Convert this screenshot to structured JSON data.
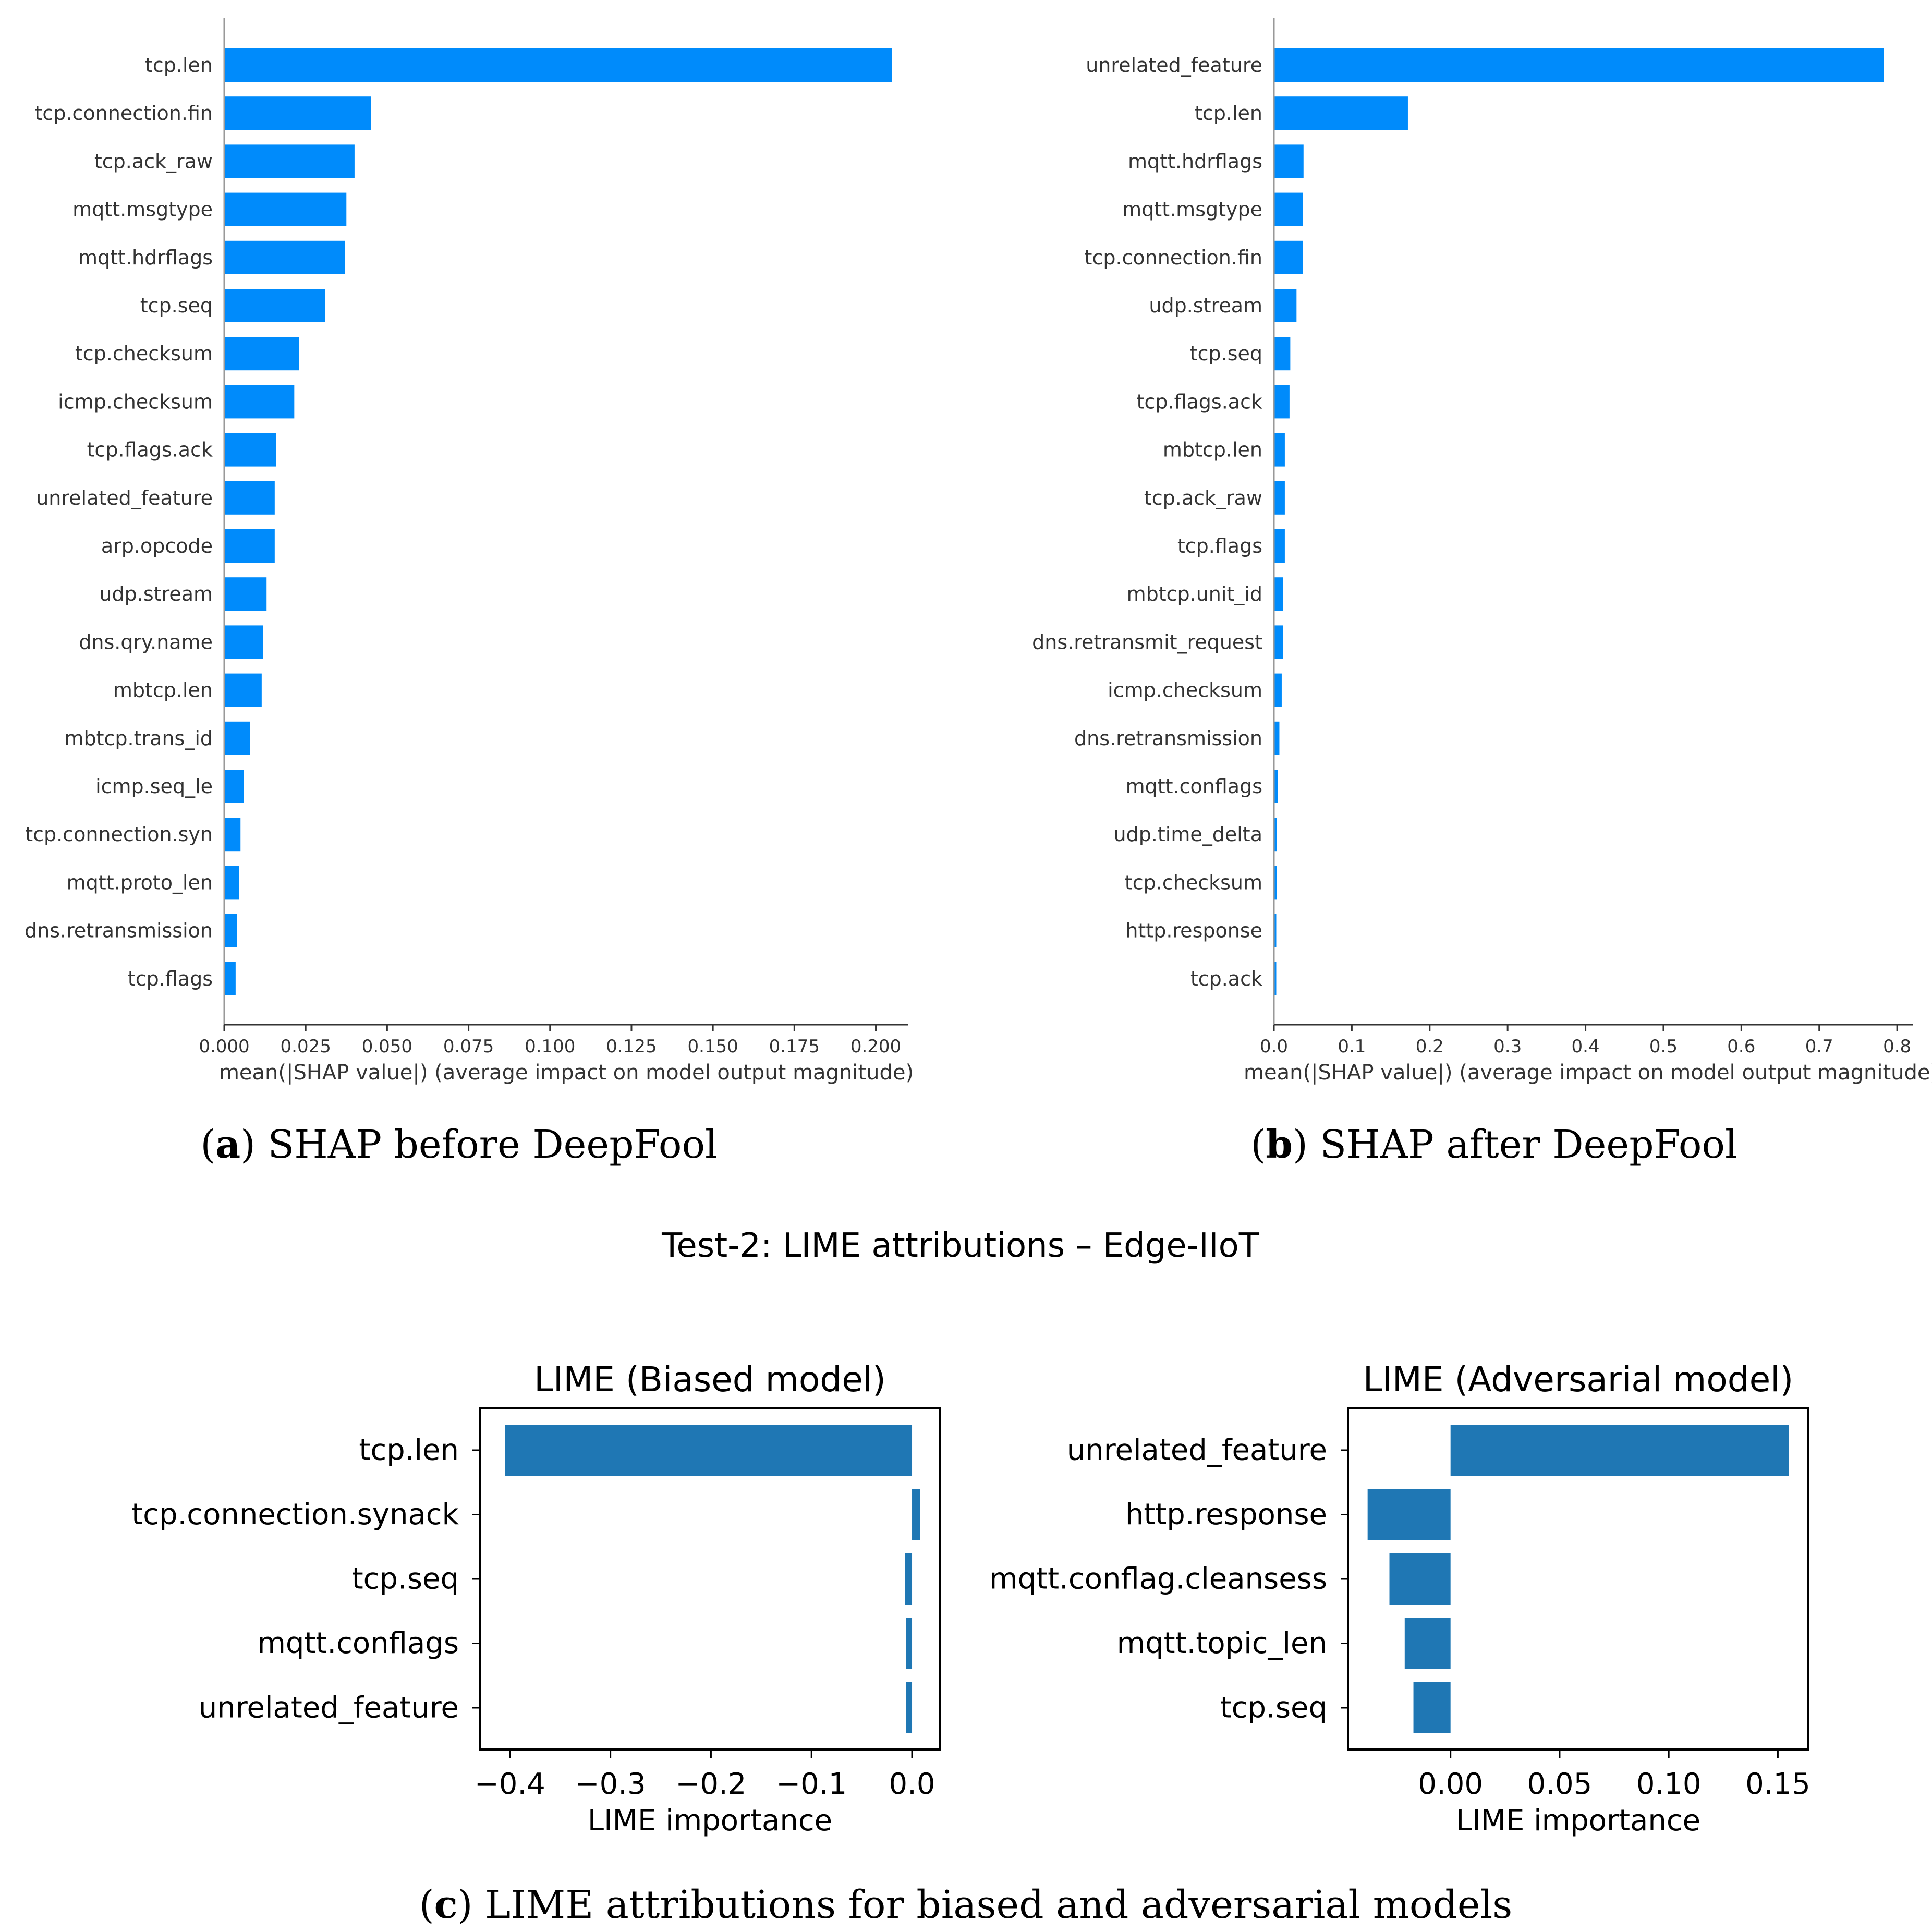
{
  "figure": {
    "caption_a_letter": "a",
    "caption_a_text": " SHAP before DeepFool",
    "caption_b_letter": "b",
    "caption_b_text": " SHAP after DeepFool",
    "suptitle": "Test-2: LIME attributions – Edge-IIoT",
    "caption_c_letter": "c",
    "caption_c_text": " LIME attributions for biased and adversarial models",
    "bar_color_shap": "#008bfb",
    "bar_color_lime": "#1f77b4"
  },
  "chart_data": [
    {
      "type": "bar",
      "orientation": "horizontal",
      "xlabel": "mean(|SHAP value|) (average impact on model output magnitude)",
      "xlim": [
        0,
        0.21
      ],
      "xticks": [
        0.0,
        0.025,
        0.05,
        0.075,
        0.1,
        0.125,
        0.15,
        0.175,
        0.2
      ],
      "xtick_labels": [
        "0.000",
        "0.025",
        "0.050",
        "0.075",
        "0.100",
        "0.125",
        "0.150",
        "0.175",
        "0.200"
      ],
      "categories": [
        "tcp.len",
        "tcp.connection.fin",
        "tcp.ack_raw",
        "mqtt.msgtype",
        "mqtt.hdrflags",
        "tcp.seq",
        "tcp.checksum",
        "icmp.checksum",
        "tcp.flags.ack",
        "unrelated_feature",
        "arp.opcode",
        "udp.stream",
        "dns.qry.name",
        "mbtcp.len",
        "mbtcp.trans_id",
        "icmp.seq_le",
        "tcp.connection.syn",
        "mqtt.proto_len",
        "dns.retransmission",
        "tcp.flags"
      ],
      "values": [
        0.205,
        0.045,
        0.04,
        0.0375,
        0.037,
        0.031,
        0.023,
        0.0215,
        0.016,
        0.0155,
        0.0155,
        0.013,
        0.012,
        0.0115,
        0.008,
        0.006,
        0.005,
        0.0045,
        0.004,
        0.0035
      ]
    },
    {
      "type": "bar",
      "orientation": "horizontal",
      "xlabel": "mean(|SHAP value|) (average impact on model output magnitude)",
      "xlim": [
        0,
        0.82
      ],
      "xticks": [
        0.0,
        0.1,
        0.2,
        0.3,
        0.4,
        0.5,
        0.6,
        0.7,
        0.8
      ],
      "xtick_labels": [
        "0.0",
        "0.1",
        "0.2",
        "0.3",
        "0.4",
        "0.5",
        "0.6",
        "0.7",
        "0.8"
      ],
      "categories": [
        "unrelated_feature",
        "tcp.len",
        "mqtt.hdrflags",
        "mqtt.msgtype",
        "tcp.connection.fin",
        "udp.stream",
        "tcp.seq",
        "tcp.flags.ack",
        "mbtcp.len",
        "tcp.ack_raw",
        "tcp.flags",
        "mbtcp.unit_id",
        "dns.retransmit_request",
        "icmp.checksum",
        "dns.retransmission",
        "mqtt.conflags",
        "udp.time_delta",
        "tcp.checksum",
        "http.response",
        "tcp.ack"
      ],
      "values": [
        0.783,
        0.172,
        0.038,
        0.037,
        0.037,
        0.029,
        0.021,
        0.02,
        0.014,
        0.014,
        0.014,
        0.012,
        0.012,
        0.01,
        0.007,
        0.005,
        0.004,
        0.004,
        0.003,
        0.003
      ]
    },
    {
      "type": "bar",
      "orientation": "horizontal",
      "title": "LIME (Biased model)",
      "xlabel": "LIME importance",
      "xlim": [
        -0.43,
        0.028
      ],
      "xticks": [
        -0.4,
        -0.3,
        -0.2,
        -0.1,
        0.0
      ],
      "xtick_labels": [
        "−0.4",
        "−0.3",
        "−0.2",
        "−0.1",
        "0.0"
      ],
      "categories": [
        "tcp.len",
        "tcp.connection.synack",
        "tcp.seq",
        "mqtt.conflags",
        "unrelated_feature"
      ],
      "values": [
        -0.405,
        0.008,
        -0.007,
        -0.006,
        -0.006
      ]
    },
    {
      "type": "bar",
      "orientation": "horizontal",
      "title": "LIME (Adversarial model)",
      "xlabel": "LIME importance",
      "xlim": [
        -0.047,
        0.164
      ],
      "xticks": [
        0.0,
        0.05,
        0.1,
        0.15
      ],
      "xtick_labels": [
        "0.00",
        "0.05",
        "0.10",
        "0.15"
      ],
      "categories": [
        "unrelated_feature",
        "http.response",
        "mqtt.conflag.cleansess",
        "mqtt.topic_len",
        "tcp.seq"
      ],
      "values": [
        0.155,
        -0.038,
        -0.028,
        -0.021,
        -0.017
      ]
    }
  ]
}
